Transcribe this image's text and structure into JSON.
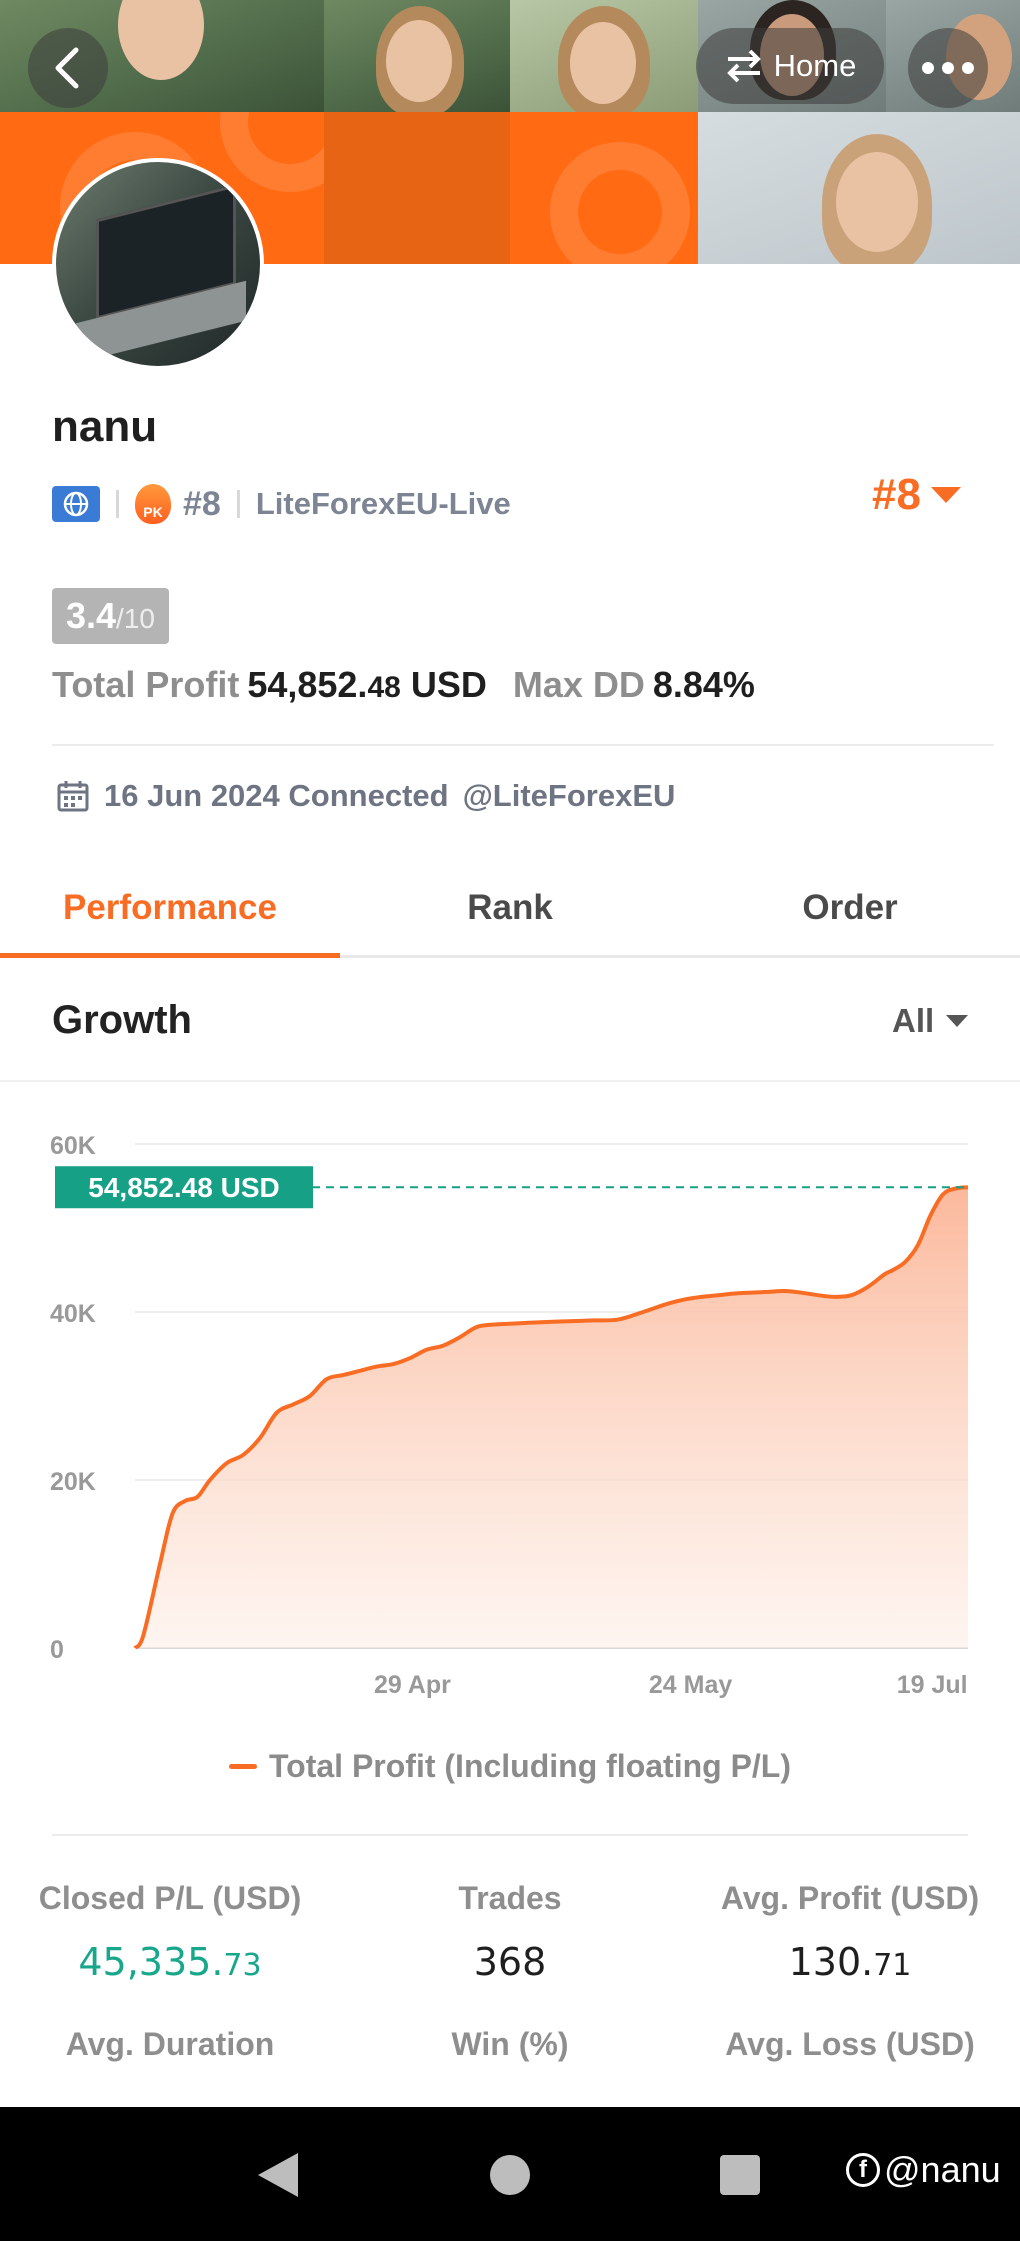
{
  "header": {
    "home_label": "Home"
  },
  "profile": {
    "name": "nanu",
    "rank_tag": "#8",
    "fire_badge": "PK",
    "broker": "LiteForexEU-Live",
    "rank_big": "#8",
    "score_value": "3.4",
    "score_max": "/10",
    "total_profit_label": "Total Profit",
    "total_profit_main": "54,852.",
    "total_profit_decimals": "48",
    "total_profit_currency": " USD",
    "max_dd_label": "Max DD",
    "max_dd_value": "8.84%",
    "connected_text": "16 Jun 2024 Connected",
    "connected_handle": "@LiteForexEU"
  },
  "tabs": [
    "Performance",
    "Rank",
    "Order"
  ],
  "growth": {
    "title": "Growth",
    "range": "All"
  },
  "chart_data": {
    "type": "area",
    "ylim": [
      0,
      60000
    ],
    "y_ticks": [
      "60K",
      "40K",
      "20K",
      "0"
    ],
    "y_tick_values": [
      60000,
      40000,
      20000,
      0
    ],
    "x_tick_labels": [
      "29 Apr",
      "24 May",
      "19 Jul"
    ],
    "x_tick_positions": [
      0.333,
      0.667,
      0.957
    ],
    "current_label": "54,852.48 USD",
    "current_value": 54852.48,
    "series": [
      {
        "name": "Total Profit (Including floating P/L)",
        "x": [
          0,
          0.01,
          0.03,
          0.045,
          0.06,
          0.075,
          0.09,
          0.11,
          0.13,
          0.15,
          0.17,
          0.19,
          0.21,
          0.23,
          0.25,
          0.27,
          0.29,
          0.31,
          0.33,
          0.35,
          0.37,
          0.39,
          0.41,
          0.43,
          0.45,
          0.47,
          0.49,
          0.52,
          0.55,
          0.58,
          0.61,
          0.64,
          0.66,
          0.68,
          0.7,
          0.72,
          0.74,
          0.76,
          0.78,
          0.8,
          0.82,
          0.84,
          0.86,
          0.88,
          0.9,
          0.91,
          0.925,
          0.94,
          0.955,
          0.97,
          0.985,
          1
        ],
        "y": [
          0,
          1500,
          10000,
          16000,
          17500,
          18000,
          20000,
          22000,
          23000,
          25000,
          28000,
          29000,
          30000,
          32000,
          32500,
          33000,
          33500,
          33800,
          34500,
          35500,
          36000,
          37000,
          38200,
          38500,
          38600,
          38700,
          38800,
          38900,
          39000,
          39100,
          40000,
          41000,
          41500,
          41800,
          42000,
          42200,
          42300,
          42400,
          42500,
          42300,
          42000,
          41800,
          42000,
          43000,
          44500,
          45000,
          46000,
          48000,
          51500,
          54000,
          54700,
          54852.48
        ]
      }
    ],
    "colors": {
      "line": "#f96c24",
      "fill": "#fbc2a6",
      "marker": "#16a085",
      "grid": "#eeeeee"
    }
  },
  "legend": {
    "label": "Total Profit (Including floating P/L)"
  },
  "metrics": {
    "row1": [
      {
        "label": "Closed P/L (USD)",
        "main": "45,335.",
        "dec": "73",
        "tone": "green"
      },
      {
        "label": "Trades",
        "main": "368",
        "dec": "",
        "tone": "normal"
      },
      {
        "label": "Avg. Profit (USD)",
        "main": "130.",
        "dec": "71",
        "tone": "normal"
      }
    ],
    "row2": [
      {
        "label": "Avg. Duration"
      },
      {
        "label": "Win (%)"
      },
      {
        "label": "Avg. Loss (USD)"
      }
    ]
  },
  "watermark": "@nanu"
}
